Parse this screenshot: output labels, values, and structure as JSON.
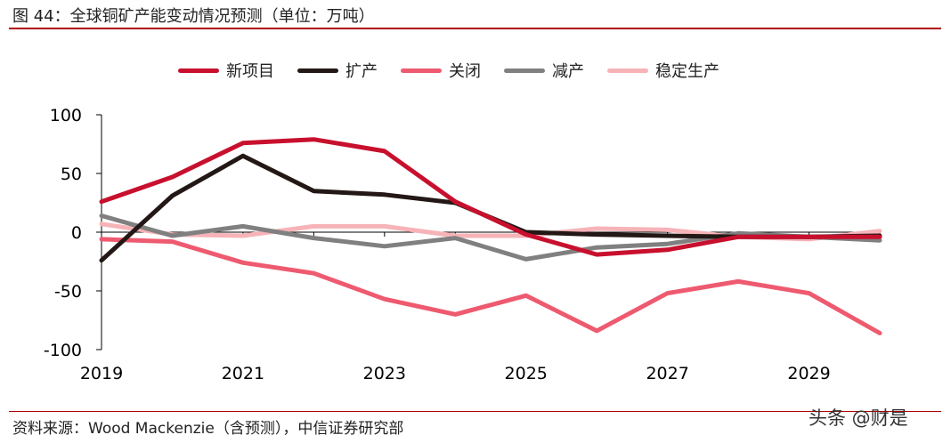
{
  "header": {
    "title": "图 44：全球铜矿产能变动情况预测（单位：万吨）"
  },
  "footer": {
    "source": "资料来源：Wood Mackenzie（含预测），中信证券研究部",
    "watermark": "头条 @财是"
  },
  "chart_data": {
    "type": "line",
    "title": "",
    "xlabel": "",
    "ylabel": "",
    "ylim": [
      -100,
      100
    ],
    "yticks": [
      100,
      50,
      0,
      -50,
      -100
    ],
    "xlim": [
      2019,
      2030
    ],
    "xticks": [
      2019,
      2021,
      2023,
      2025,
      2027,
      2029
    ],
    "legend_position": "top",
    "x": [
      2019,
      2020,
      2021,
      2022,
      2023,
      2024,
      2025,
      2026,
      2027,
      2028,
      2029,
      2030
    ],
    "series": [
      {
        "name": "新项目",
        "color": "#c8102e",
        "values": [
          26,
          47,
          76,
          79,
          69,
          26,
          -2,
          -19,
          -15,
          -4,
          -4,
          -4
        ]
      },
      {
        "name": "扩产",
        "color": "#231815",
        "values": [
          -24,
          31,
          65,
          35,
          32,
          25,
          0,
          -2,
          -3,
          -4,
          -4,
          -3
        ]
      },
      {
        "name": "关闭",
        "color": "#ee5a6f",
        "values": [
          -6,
          -8,
          -26,
          -35,
          -57,
          -70,
          -54,
          -84,
          -52,
          -42,
          -52,
          -86
        ]
      },
      {
        "name": "减产",
        "color": "#808080",
        "values": [
          14,
          -3,
          5,
          -5,
          -12,
          -5,
          -23,
          -13,
          -10,
          -1,
          -4,
          -7
        ]
      },
      {
        "name": "稳定生产",
        "color": "#f6b3b8",
        "values": [
          7,
          -2,
          -3,
          5,
          5,
          -3,
          -3,
          3,
          2,
          -4,
          -6,
          1
        ]
      }
    ]
  }
}
